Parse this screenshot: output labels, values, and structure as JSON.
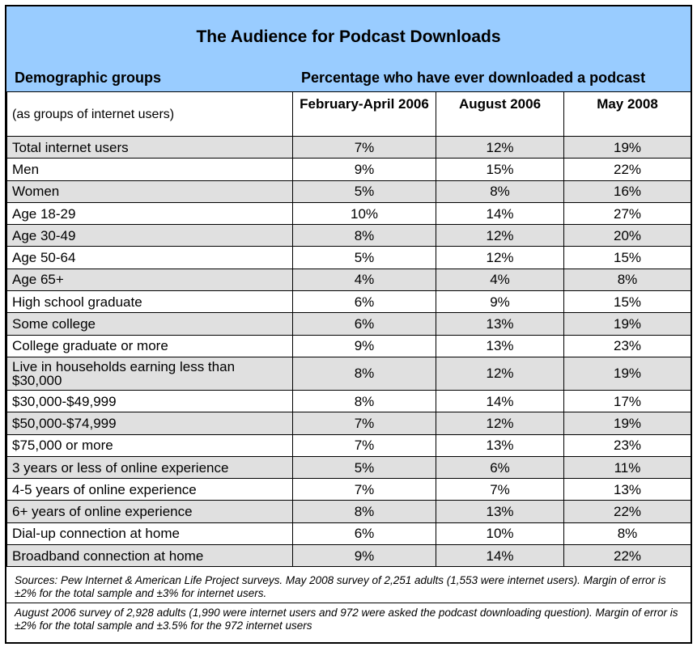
{
  "title": "The Audience for Podcast Downloads",
  "header_left": "Demographic groups",
  "header_right": "Percentage who have ever downloaded a podcast",
  "sub_label": "(as groups of internet users)",
  "columns": [
    "February-April 2006",
    "August 2006",
    "May 2008"
  ],
  "rows": [
    {
      "label": "Total internet users",
      "v1": "7%",
      "v2": "12%",
      "v3": "19%"
    },
    {
      "label": "Men",
      "v1": "9%",
      "v2": "15%",
      "v3": "22%"
    },
    {
      "label": "Women",
      "v1": "5%",
      "v2": "8%",
      "v3": "16%"
    },
    {
      "label": "Age 18-29",
      "v1": "10%",
      "v2": "14%",
      "v3": "27%"
    },
    {
      "label": "Age 30-49",
      "v1": "8%",
      "v2": "12%",
      "v3": "20%"
    },
    {
      "label": "Age 50-64",
      "v1": "5%",
      "v2": "12%",
      "v3": "15%"
    },
    {
      "label": "Age 65+",
      "v1": "4%",
      "v2": "4%",
      "v3": "8%"
    },
    {
      "label": "High school graduate",
      "v1": "6%",
      "v2": "9%",
      "v3": "15%"
    },
    {
      "label": "Some college",
      "v1": "6%",
      "v2": "13%",
      "v3": "19%"
    },
    {
      "label": "College graduate or more",
      "v1": "9%",
      "v2": "13%",
      "v3": "23%"
    },
    {
      "label": "Live in households earning less than $30,000",
      "v1": "8%",
      "v2": "12%",
      "v3": "19%"
    },
    {
      "label": "$30,000-$49,999",
      "v1": "8%",
      "v2": "14%",
      "v3": "17%"
    },
    {
      "label": "$50,000-$74,999",
      "v1": "7%",
      "v2": "12%",
      "v3": "19%"
    },
    {
      "label": "$75,000 or more",
      "v1": "7%",
      "v2": "13%",
      "v3": "23%"
    },
    {
      "label": "3 years or less of online experience",
      "v1": "5%",
      "v2": "6%",
      "v3": "11%"
    },
    {
      "label": "4-5 years of online experience",
      "v1": "7%",
      "v2": "7%",
      "v3": "13%"
    },
    {
      "label": "6+ years of online experience",
      "v1": "8%",
      "v2": "13%",
      "v3": "22%"
    },
    {
      "label": "Dial-up connection at home",
      "v1": "6%",
      "v2": "10%",
      "v3": "8%"
    },
    {
      "label": "Broadband connection at home",
      "v1": "9%",
      "v2": "14%",
      "v3": "22%"
    }
  ],
  "notes": [
    "Sources: Pew Internet & American Life Project surveys. May 2008 survey of 2,251 adults (1,553 were internet users). Margin of error is ±2% for the total sample and ±3% for internet users.",
    "August 2006 survey of 2,928 adults (1,990 were internet users and 972 were asked the podcast downloading question). Margin of error is ±2% for the total sample and ±3.5% for the 972 internet users"
  ],
  "colors": {
    "header_bg": "#99ccff",
    "shade": "#e0e0e0"
  }
}
